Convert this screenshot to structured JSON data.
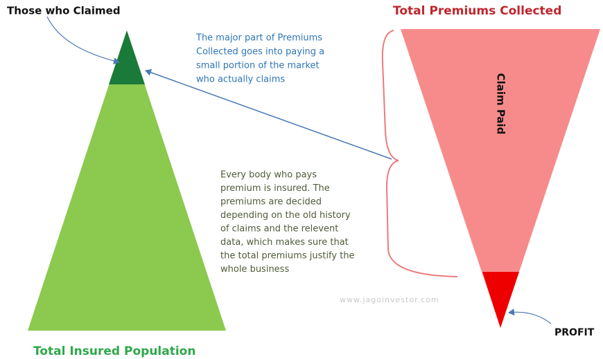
{
  "labels": {
    "claimed": "Those who Claimed",
    "premiums": "Total Premiums Collected",
    "claim_paid": "Claim Paid",
    "profit": "PROFIT",
    "population": "Total Insured Population",
    "watermark": "www.jagoinvestor.com"
  },
  "notes": {
    "major": [
      "The major part of Premiums",
      "Collected goes into paying a",
      "small portion of the market",
      "who actually claims"
    ],
    "everybody": [
      "Every body who pays",
      "premium is insured. The",
      "premiums are decided",
      "depending on the old history",
      "of claims and the relevent",
      "data, which makes sure that",
      "the total premiums justify the",
      "whole business"
    ]
  }
}
